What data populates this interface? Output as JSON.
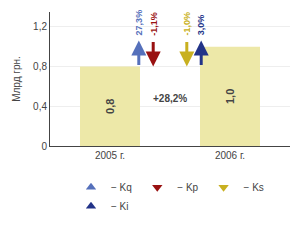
{
  "chart_data": {
    "type": "bar",
    "categories": [
      "2005 г.",
      "2006 г."
    ],
    "values": [
      0.8,
      1.0
    ],
    "value_labels": [
      "0,8",
      "1,0"
    ],
    "data_labels": true,
    "color": "#EDE8A8",
    "ylabel": "Млрд грн.",
    "ylim": [
      0,
      1.35
    ],
    "yticks": [
      0,
      {
        "value": 0.4,
        "label": "0,4"
      },
      {
        "value": 0.8,
        "label": "0,8"
      },
      {
        "value": 1.2,
        "label": "1,2"
      }
    ],
    "annotations": [
      {
        "text": "+28,2%"
      },
      {
        "text": "27,3%"
      },
      {
        "text": "-1,1%"
      },
      {
        "text": "-1,0%"
      },
      {
        "text": "3,0%"
      }
    ],
    "series": [
      {
        "name": "− Kq",
        "color": "#5570BB",
        "marker": "up"
      },
      {
        "name": "− Kp",
        "color": "#991111",
        "marker": "down"
      },
      {
        "name": "− Ks",
        "color": "#C8B020",
        "marker": "down"
      },
      {
        "name": "− Ki",
        "color": "#223388",
        "marker": "up"
      }
    ]
  }
}
